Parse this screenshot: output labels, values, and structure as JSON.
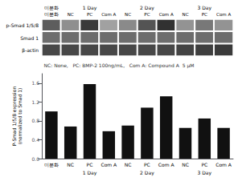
{
  "chart_data": [
    {
      "type": "heatmap",
      "categories": [
        "미분화",
        "NC",
        "PC",
        "Com A",
        "NC",
        "PC",
        "Com A",
        "NC",
        "PC",
        "Com A"
      ],
      "groups": [
        "미분화",
        "1 Day",
        "1 Day",
        "1 Day",
        "2 Day",
        "2 Day",
        "2 Day",
        "3 Day",
        "3 Day",
        "3 Day"
      ],
      "series": [
        {
          "name": "p-Smad 1/5/8",
          "values": [
            0.72,
            0.5,
            0.88,
            0.42,
            0.52,
            0.76,
            0.92,
            0.48,
            0.6,
            0.48
          ]
        },
        {
          "name": "Smad 1",
          "values": [
            0.65,
            0.65,
            0.65,
            0.65,
            0.65,
            0.65,
            0.65,
            0.65,
            0.65,
            0.65
          ]
        },
        {
          "name": "β-actin",
          "values": [
            0.82,
            0.82,
            0.82,
            0.82,
            0.82,
            0.82,
            0.82,
            0.84,
            0.86,
            0.88
          ]
        }
      ],
      "annotations": [
        "NC: None,   PC: BMP-2 100ng/mL,   Com A: Compound A  5 μM"
      ]
    },
    {
      "type": "bar",
      "categories": [
        "미분화",
        "NC",
        "PC",
        "Com A",
        "NC",
        "PC",
        "Com A",
        "NC",
        "PC",
        "Com A"
      ],
      "groups": [
        null,
        "1 Day",
        "1 Day",
        "1 Day",
        "2 Day",
        "2 Day",
        "2 Day",
        "3 Day",
        "3 Day",
        "3 Day"
      ],
      "values": [
        1.0,
        0.68,
        1.58,
        0.58,
        0.7,
        1.08,
        1.32,
        0.65,
        0.85,
        0.65
      ],
      "color": "#111111",
      "ylabel": "P-Smad 1/5/8 expression\n(normalized to Smad 1)",
      "ylim": [
        0,
        1.8
      ],
      "yticks": [
        {
          "value": 0.0,
          "label": "0.0"
        },
        0.4,
        0.8,
        1.2,
        1.6
      ],
      "grid": false
    }
  ]
}
